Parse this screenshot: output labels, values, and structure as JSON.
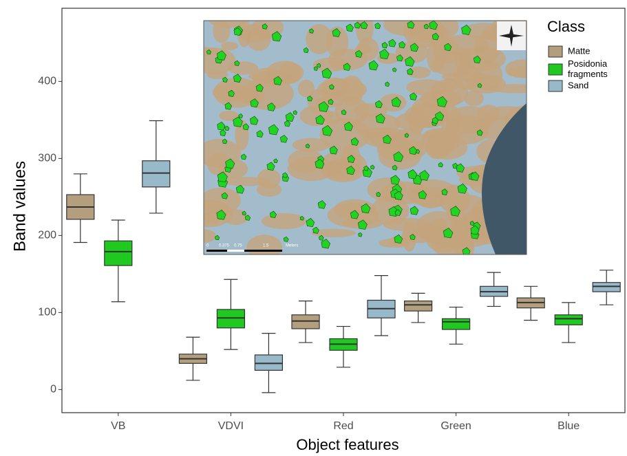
{
  "chart_data": {
    "type": "box",
    "x_label": "Object features",
    "y_label": "Band values",
    "categories": [
      "VB",
      "VDVI",
      "Red",
      "Green",
      "Blue"
    ],
    "legend_title": "Class",
    "legend": "right",
    "grid": false,
    "ylim": [
      -30,
      495
    ],
    "yticks": [
      0,
      100,
      200,
      300,
      400
    ],
    "series": [
      {
        "name": "Matte",
        "color": "#b39f7e",
        "values": [
          [
            191,
            221,
            237,
            253,
            280
          ],
          [
            12,
            34,
            40,
            46,
            68
          ],
          [
            61,
            79,
            89,
            97,
            115
          ],
          [
            87,
            102,
            110,
            115,
            125
          ],
          [
            90,
            106,
            113,
            119,
            134
          ]
        ]
      },
      {
        "name": "Posidonia fragments",
        "color": "#1fc91f",
        "values": [
          [
            114,
            161,
            179,
            193,
            220
          ],
          [
            52,
            80,
            93,
            104,
            143
          ],
          [
            29,
            51,
            59,
            66,
            82
          ],
          [
            59,
            78,
            88,
            92,
            107
          ],
          [
            61,
            84,
            92,
            97,
            113
          ]
        ]
      },
      {
        "name": "Sand",
        "color": "#97b9c9",
        "values": [
          [
            229,
            263,
            281,
            297,
            349
          ],
          [
            -4,
            25,
            34,
            45,
            73
          ],
          [
            70,
            93,
            105,
            116,
            148
          ],
          [
            108,
            121,
            127,
            134,
            152
          ],
          [
            110,
            127,
            134,
            139,
            155
          ]
        ]
      }
    ]
  },
  "inset": {
    "scale_labels": [
      "0",
      "0.375",
      "0.75",
      "1.5",
      "Meters"
    ]
  }
}
